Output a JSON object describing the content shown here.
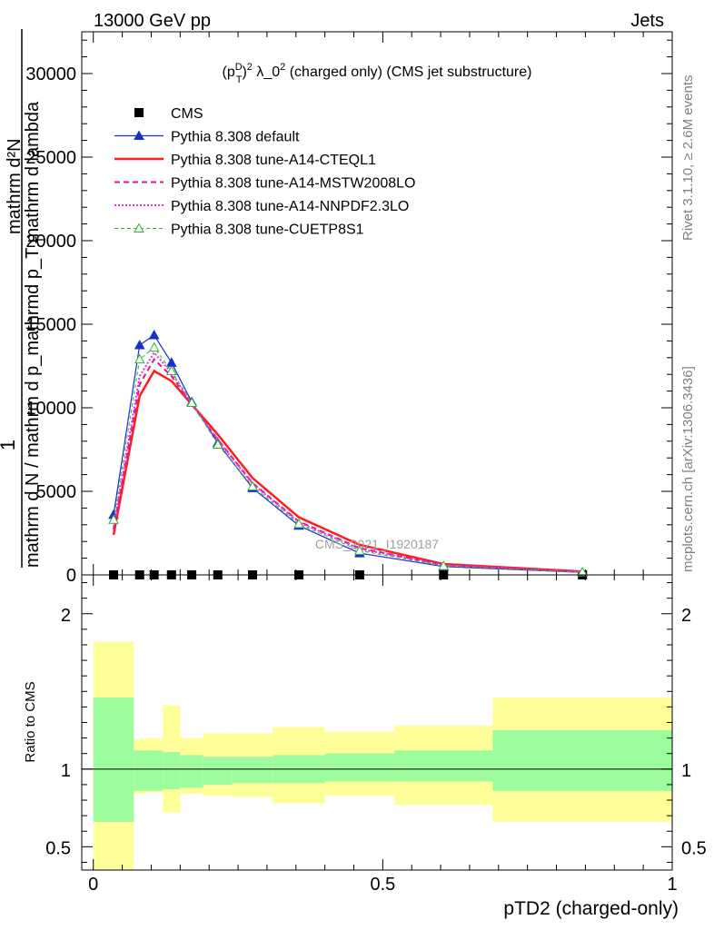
{
  "header": {
    "left": "13000 GeV pp",
    "right": "Jets"
  },
  "side": {
    "rivet": "Rivet 3.1.10, ≥ 2.6M events",
    "url": "mcplots.cern.ch [arXiv:1306.3436]"
  },
  "watermark": "CMS_2021_I1920187",
  "chart_data": [
    {
      "type": "line",
      "title": "(p_T^D)^2 λ_0^2 (charged only) (CMS jet substructure)",
      "title_parts": {
        "open": "(p",
        "sup_D": "D",
        "sub_T": "T",
        "close_sq": ")",
        "sup2": "2",
        "lambda": " λ_0",
        "sup2b": "2",
        "rest": " (charged only) (CMS jet substructure)"
      },
      "ylabel_lines": [
        "1",
        "mathrm d N / mathrm d p_mathrmd p_T mathrm d lambda",
        "mathrm d²N"
      ],
      "ylabel_sub": "T",
      "xlim": [
        -0.02,
        1.0
      ],
      "ylim": [
        0,
        32500
      ],
      "yticks": [
        {
          "v": 0,
          "label": "0"
        },
        {
          "v": 5000,
          "label": "5000"
        },
        {
          "v": 10000,
          "label": "10000"
        },
        {
          "v": 15000,
          "label": "15000"
        },
        {
          "v": 20000,
          "label": "20000"
        },
        {
          "v": 25000,
          "label": "25000"
        },
        {
          "v": 30000,
          "label": "30000"
        }
      ],
      "x": [
        0.035,
        0.08,
        0.105,
        0.135,
        0.17,
        0.215,
        0.275,
        0.355,
        0.46,
        0.605,
        0.845
      ],
      "series": [
        {
          "name": "CMS",
          "values": [
            0,
            0,
            0,
            0,
            0,
            0,
            0,
            0,
            0,
            0,
            0
          ],
          "color": "#000000",
          "style": "marker-square"
        },
        {
          "name": "Pythia 8.308 default",
          "values": [
            3600,
            13750,
            14350,
            12700,
            10350,
            7900,
            5200,
            2950,
            1300,
            500,
            150
          ],
          "color": "#1432c8",
          "style": "line-filled-triangle"
        },
        {
          "name": "Pythia 8.308 tune-A14-CTEQL1",
          "values": [
            2400,
            10700,
            12200,
            11600,
            10200,
            8400,
            5800,
            3450,
            1800,
            650,
            200
          ],
          "color": "#ff1e1e",
          "style": "thick-solid"
        },
        {
          "name": "Pythia 8.308 tune-A14-MSTW2008LO",
          "values": [
            2700,
            11400,
            12900,
            11900,
            10200,
            8100,
            5500,
            3200,
            1600,
            600,
            180
          ],
          "color": "#e6148c",
          "style": "dashed"
        },
        {
          "name": "Pythia 8.308 tune-A14-NNPDF2.3LO",
          "values": [
            2900,
            11900,
            13300,
            12100,
            10250,
            8050,
            5450,
            3150,
            1550,
            580,
            170
          ],
          "color": "#e632e6",
          "style": "dotted"
        },
        {
          "name": "Pythia 8.308 tune-CUETP8S1",
          "values": [
            3300,
            12900,
            13600,
            12200,
            10300,
            7800,
            5300,
            3050,
            1450,
            540,
            160
          ],
          "color": "#32b432",
          "style": "dashed-open-triangle"
        }
      ]
    },
    {
      "type": "area",
      "ylabel": "Ratio to CMS",
      "xlabel": "pTD2 (charged-only)",
      "xlim": [
        -0.02,
        1.0
      ],
      "ylim": [
        0.35,
        2.25
      ],
      "xticks": [
        {
          "v": 0,
          "label": "0"
        },
        {
          "v": 0.5,
          "label": "0.5"
        },
        {
          "v": 1,
          "label": "1"
        }
      ],
      "yticks": [
        {
          "v": 0.5,
          "label": "0.5"
        },
        {
          "v": 1,
          "label": "1"
        },
        {
          "v": 2,
          "label": "2"
        }
      ],
      "bins": [
        {
          "x0": 0.0,
          "x1": 0.07,
          "inner": [
            0.66,
            1.46
          ],
          "outer": [
            0.33,
            1.82
          ]
        },
        {
          "x0": 0.07,
          "x1": 0.09,
          "inner": [
            0.86,
            1.12
          ],
          "outer": [
            0.84,
            1.19
          ]
        },
        {
          "x0": 0.09,
          "x1": 0.12,
          "inner": [
            0.86,
            1.12
          ],
          "outer": [
            0.85,
            1.2
          ]
        },
        {
          "x0": 0.12,
          "x1": 0.15,
          "inner": [
            0.87,
            1.11
          ],
          "outer": [
            0.72,
            1.41
          ]
        },
        {
          "x0": 0.15,
          "x1": 0.19,
          "inner": [
            0.88,
            1.09
          ],
          "outer": [
            0.84,
            1.2
          ]
        },
        {
          "x0": 0.19,
          "x1": 0.24,
          "inner": [
            0.9,
            1.08
          ],
          "outer": [
            0.83,
            1.23
          ]
        },
        {
          "x0": 0.24,
          "x1": 0.31,
          "inner": [
            0.91,
            1.08
          ],
          "outer": [
            0.82,
            1.23
          ]
        },
        {
          "x0": 0.31,
          "x1": 0.4,
          "inner": [
            0.91,
            1.09
          ],
          "outer": [
            0.78,
            1.27
          ]
        },
        {
          "x0": 0.4,
          "x1": 0.52,
          "inner": [
            0.92,
            1.1
          ],
          "outer": [
            0.83,
            1.24
          ]
        },
        {
          "x0": 0.52,
          "x1": 0.69,
          "inner": [
            0.92,
            1.12
          ],
          "outer": [
            0.77,
            1.28
          ]
        },
        {
          "x0": 0.69,
          "x1": 1.0,
          "inner": [
            0.86,
            1.25
          ],
          "outer": [
            0.66,
            1.46
          ]
        }
      ],
      "colors": {
        "inner": "#9dfc9d",
        "outer": "#ffff99",
        "ref_line": "#000000"
      }
    }
  ]
}
